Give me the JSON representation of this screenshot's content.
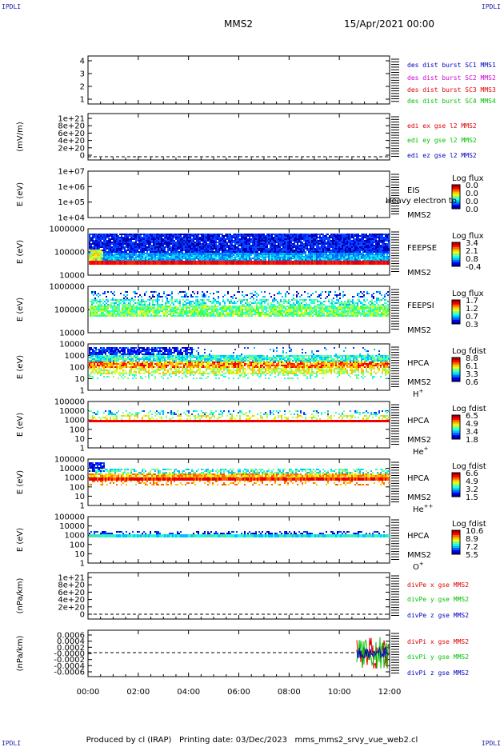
{
  "corner_left_top": "IPDLI",
  "corner_right_top": "IPDLI",
  "corner_left_bottom": "IPDLI",
  "corner_right_bottom": "IPDLI",
  "mission": "MMS2",
  "datetime": "15/Apr/2021 00:00",
  "footer": "Produced by cl (IRAP)   Printing date: 03/Dec/2023   mms_mms2_srvy_vue_web2.cl",
  "colors": {
    "red": "#e00000",
    "green": "#00c000",
    "blue": "#0000c0",
    "magenta": "#d000d0"
  },
  "chart_data": [
    {
      "type": "line",
      "yticks": [
        "4",
        "3",
        "2",
        "1"
      ],
      "ylim": [
        0.5,
        4.5
      ],
      "legend": [
        {
          "text": "des dist burst SC1 MMS1",
          "color": "#0000c0"
        },
        {
          "text": "des dist burst SC2 MMS2",
          "color": "#d000d0"
        },
        {
          "text": "des dist burst SC3 MMS3",
          "color": "#e00000"
        },
        {
          "text": "des dist burst SC4 MMS4",
          "color": "#00c000"
        }
      ]
    },
    {
      "type": "line",
      "ylabel": "(mV/m)",
      "yticks": [
        "1e+21",
        "8e+20",
        "6e+20",
        "4e+20",
        "2e+20",
        "0"
      ],
      "legend": [
        {
          "text": "edi ex gse l2 MMS2",
          "color": "#e00000"
        },
        {
          "text": "edi ey gse l2 MMS2",
          "color": "#00c000"
        },
        {
          "text": "edi ez gse l2 MMS2",
          "color": "#0000c0"
        }
      ]
    },
    {
      "type": "heatmap",
      "ylabel": "E (eV)",
      "yticks": [
        "1e+07",
        "1e+06",
        "1e+05",
        "1e+04"
      ],
      "instrument": "EIS",
      "instrument_extra": "Heavy electron to",
      "spacecraft": "MMS2",
      "colorbar_title": "Log flux",
      "colorbar_ticks": [
        "0.0",
        "0.0",
        "0.0",
        "0.0"
      ]
    },
    {
      "type": "heatmap",
      "ylabel": "E (eV)",
      "yticks": [
        "1000000",
        "100000",
        "10000"
      ],
      "instrument": "FEEPSE",
      "spacecraft": "MMS2",
      "colorbar_title": "Log flux",
      "colorbar_ticks": [
        "3.4",
        "2.1",
        "0.8",
        "-0.4"
      ]
    },
    {
      "type": "heatmap",
      "ylabel": "E (eV)",
      "yticks": [
        "1000000",
        "100000",
        "10000"
      ],
      "instrument": "FEEPSI",
      "spacecraft": "MMS2",
      "colorbar_title": "Log flux",
      "colorbar_ticks": [
        "1.7",
        "1.2",
        "0.7",
        "0.3"
      ]
    },
    {
      "type": "heatmap",
      "ylabel": "E (eV)",
      "yticks": [
        "10000",
        "1000",
        "100",
        "10",
        "1"
      ],
      "instrument": "HPCA",
      "spacecraft": "MMS2",
      "species": "H",
      "species_sup": "+",
      "colorbar_title": "Log fdist",
      "colorbar_ticks": [
        "8.8",
        "6.1",
        "3.3",
        "0.6"
      ]
    },
    {
      "type": "heatmap",
      "ylabel": "E (eV)",
      "yticks": [
        "100000",
        "10000",
        "1000",
        "100",
        "10",
        "1"
      ],
      "instrument": "HPCA",
      "spacecraft": "MMS2",
      "species": "He",
      "species_sup": "+",
      "colorbar_title": "Log fdist",
      "colorbar_ticks": [
        "6.5",
        "4.9",
        "3.4",
        "1.8"
      ]
    },
    {
      "type": "heatmap",
      "ylabel": "E (eV)",
      "yticks": [
        "100000",
        "10000",
        "1000",
        "100",
        "10",
        "1"
      ],
      "instrument": "HPCA",
      "spacecraft": "MMS2",
      "species": "He",
      "species_sup": "++",
      "colorbar_title": "Log fdist",
      "colorbar_ticks": [
        "6.6",
        "4.9",
        "3.2",
        "1.5"
      ]
    },
    {
      "type": "heatmap",
      "ylabel": "E (eV)",
      "yticks": [
        "100000",
        "10000",
        "1000",
        "100",
        "10",
        "1"
      ],
      "instrument": "HPCA",
      "spacecraft": "MMS2",
      "species": "O",
      "species_sup": "+",
      "colorbar_title": "Log fdist",
      "colorbar_ticks": [
        "10.6",
        "8.9",
        "7.2",
        "5.5"
      ]
    },
    {
      "type": "line",
      "ylabel": "(nPa/km)",
      "yticks": [
        "1e+21",
        "8e+20",
        "6e+20",
        "4e+20",
        "2e+20",
        "0"
      ],
      "legend": [
        {
          "text": "divPe x gse MMS2",
          "color": "#e00000"
        },
        {
          "text": "divPe y gse MMS2",
          "color": "#00c000"
        },
        {
          "text": "divPe z gse MMS2",
          "color": "#0000c0"
        }
      ]
    },
    {
      "type": "line",
      "ylabel": "(nPa/km)",
      "yticks": [
        "0.0006",
        "0.0004",
        "0.0002",
        "-0.0000",
        "-0.0002",
        "-0.0004",
        "-0.0006"
      ],
      "legend": [
        {
          "text": "divPi x gse MMS2",
          "color": "#e00000"
        },
        {
          "text": "divPi y gse MMS2",
          "color": "#00c000"
        },
        {
          "text": "divPi z gse MMS2",
          "color": "#0000c0"
        }
      ]
    }
  ],
  "xaxis": {
    "ticks": [
      "00:00",
      "02:00",
      "04:00",
      "06:00",
      "08:00",
      "10:00",
      "12:00"
    ]
  }
}
